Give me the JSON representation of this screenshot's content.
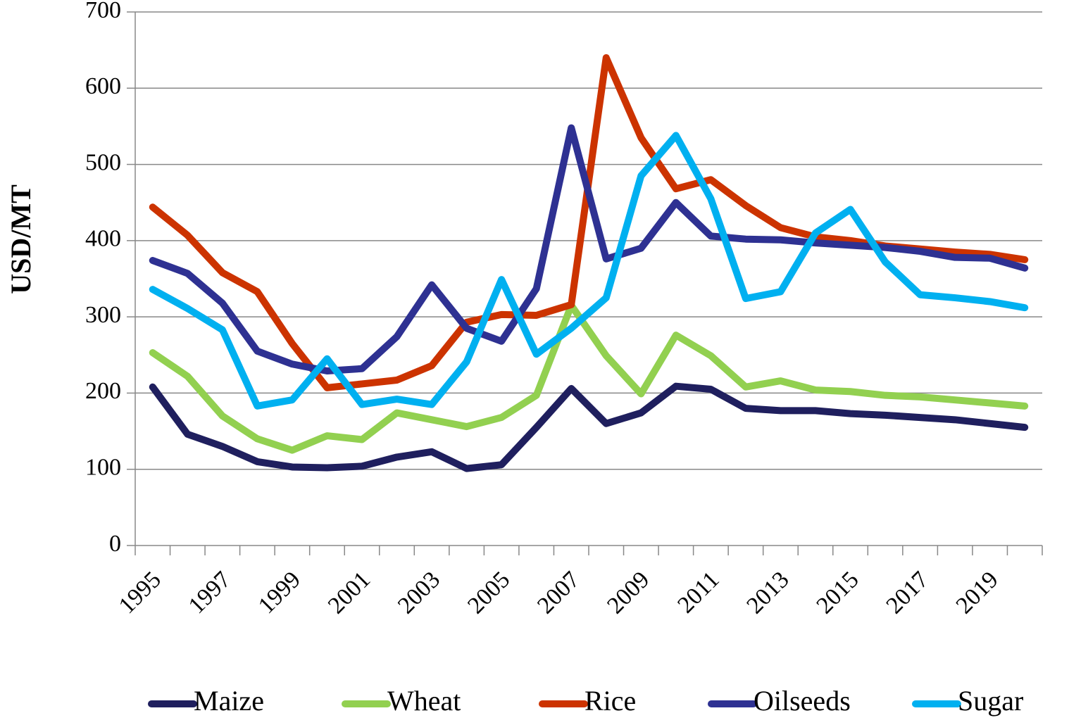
{
  "chart_data": {
    "type": "line",
    "y_label": "USD/MT",
    "categories": [
      "1995",
      null,
      "1997",
      null,
      "1999",
      null,
      "2001",
      null,
      "2003",
      null,
      "2005",
      null,
      "2007",
      null,
      "2009",
      null,
      "2011",
      null,
      "2013",
      null,
      "2015",
      null,
      "2017",
      null,
      "2019",
      null
    ],
    "series": [
      {
        "name": "Maize",
        "color": "#1f1f5e",
        "values": [
          208,
          146,
          130,
          110,
          103,
          102,
          104,
          116,
          123,
          101,
          106,
          155,
          206,
          160,
          174,
          209,
          205,
          180,
          177,
          177,
          173,
          171,
          168,
          165,
          160,
          155
        ]
      },
      {
        "name": "Wheat",
        "color": "#92d050",
        "values": [
          253,
          222,
          170,
          140,
          125,
          144,
          139,
          174,
          165,
          156,
          168,
          197,
          315,
          249,
          199,
          276,
          249,
          208,
          216,
          204,
          202,
          197,
          195,
          191,
          187,
          183
        ]
      },
      {
        "name": "Rice",
        "color": "#cc3300",
        "values": [
          444,
          407,
          358,
          333,
          265,
          207,
          212,
          217,
          236,
          293,
          303,
          302,
          316,
          640,
          535,
          468,
          480,
          446,
          417,
          405,
          400,
          393,
          389,
          385,
          382,
          375
        ]
      },
      {
        "name": "Oilseeds",
        "color": "#2e3192",
        "values": [
          374,
          357,
          318,
          255,
          238,
          229,
          232,
          274,
          342,
          285,
          268,
          337,
          548,
          376,
          390,
          450,
          406,
          402,
          401,
          397,
          394,
          391,
          386,
          378,
          377,
          364
        ]
      },
      {
        "name": "Sugar",
        "color": "#00b0f0",
        "values": [
          336,
          311,
          283,
          183,
          191,
          245,
          185,
          192,
          185,
          241,
          349,
          251,
          285,
          325,
          485,
          538,
          455,
          324,
          333,
          410,
          441,
          372,
          329,
          325,
          320,
          312
        ]
      }
    ],
    "ylim": [
      0,
      700
    ],
    "yticks": [
      0,
      100,
      200,
      300,
      400,
      500,
      600,
      700
    ],
    "grid": true,
    "legend": "bottom"
  }
}
